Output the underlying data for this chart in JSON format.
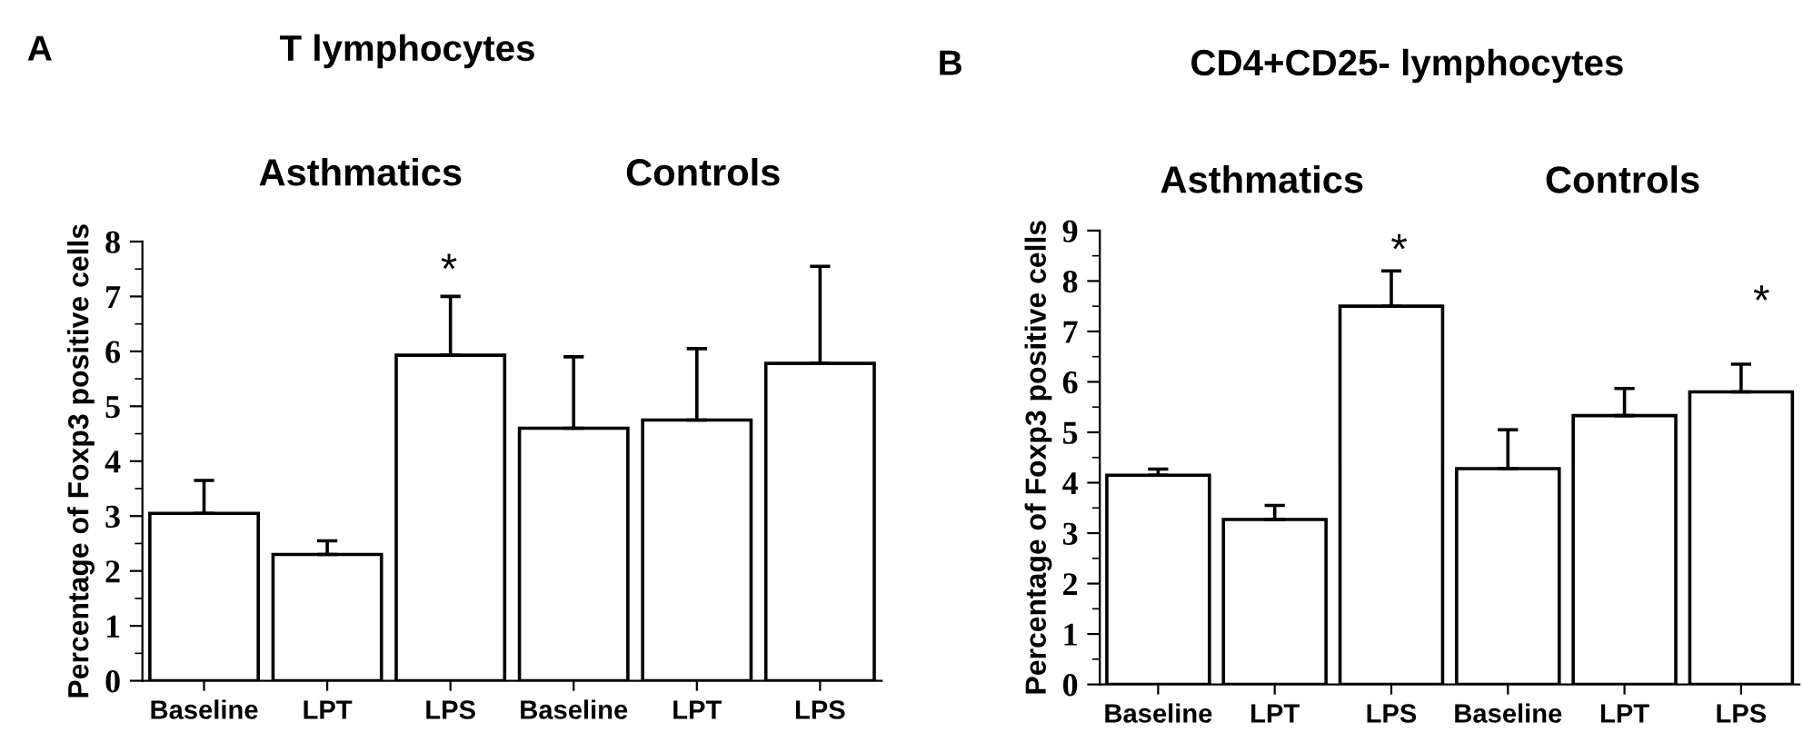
{
  "chart_data": [
    {
      "type": "bar",
      "title": "T lymphocytes",
      "ylabel": "Percentage of Foxp3 positive cells",
      "categories": [
        "Baseline",
        "LPT",
        "LPS",
        "Baseline",
        "LPT",
        "LPS"
      ],
      "values": [
        3.05,
        2.3,
        5.93,
        4.6,
        4.75,
        5.78
      ],
      "errors": [
        [
          3.05,
          3.65
        ],
        [
          2.3,
          2.55
        ],
        [
          5.93,
          7.0
        ],
        [
          4.6,
          5.9
        ],
        [
          4.75,
          6.05
        ],
        [
          5.78,
          7.55
        ]
      ],
      "color": "#ffffff",
      "ylim": [
        0,
        8
      ],
      "yticks": [
        0,
        1,
        2,
        3,
        4,
        5,
        6,
        7,
        8
      ],
      "annotations": [
        "A",
        "Asthmatics",
        "Controls",
        "*"
      ]
    },
    {
      "type": "bar",
      "title": "CD4+CD25- lymphocytes",
      "ylabel": "Percentage of Foxp3 positive cells",
      "categories": [
        "Baseline",
        "LPT",
        "LPS",
        "Baseline",
        "LPT",
        "LPS"
      ],
      "values": [
        4.15,
        3.27,
        7.5,
        4.28,
        5.33,
        5.8
      ],
      "errors": [
        [
          4.15,
          4.27
        ],
        [
          3.27,
          3.55
        ],
        [
          7.5,
          8.2
        ],
        [
          4.28,
          5.05
        ],
        [
          5.33,
          5.87
        ],
        [
          5.8,
          6.35
        ]
      ],
      "color": "#ffffff",
      "ylim": [
        0,
        9
      ],
      "yticks": [
        0,
        1,
        2,
        3,
        4,
        5,
        6,
        7,
        8,
        9
      ],
      "annotations": [
        "B",
        "Asthmatics",
        "Controls",
        "*",
        "*"
      ]
    }
  ]
}
